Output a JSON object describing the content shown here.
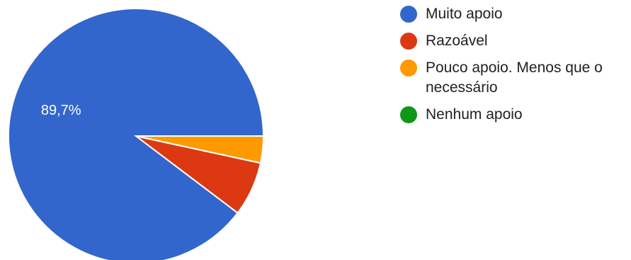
{
  "chart_data": {
    "type": "pie",
    "categories": [
      "Muito apoio",
      "Razoável",
      "Pouco apoio. Menos que o necessário",
      "Nenhum apoio"
    ],
    "values": [
      89.7,
      6.9,
      3.4,
      0
    ],
    "colors": [
      "#3366cc",
      "#dc3912",
      "#ff9900",
      "#109618"
    ],
    "data_labels": [
      "89,7%",
      "",
      "",
      ""
    ],
    "legend_position": "right"
  }
}
